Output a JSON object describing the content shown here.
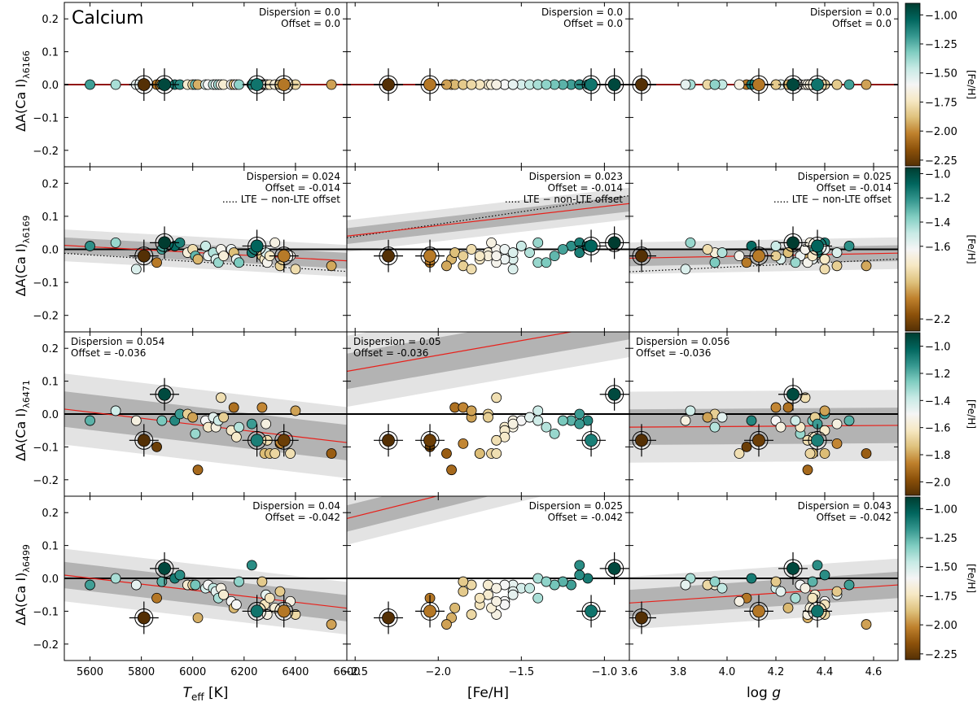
{
  "figure_title": "Calcium",
  "chart_data": {
    "type": "scatter",
    "element": "Calcium",
    "columns": [
      {
        "key": "teff",
        "xlabel_main": "T",
        "xlabel_sub": "eff",
        "xlabel_unit": " [K]",
        "xlim": [
          5500,
          6600
        ],
        "ticks": [
          5600,
          5800,
          6000,
          6200,
          6400,
          6600
        ],
        "tick_labels": [
          "5600",
          "5800",
          "6000",
          "6200",
          "6400",
          "6600"
        ]
      },
      {
        "key": "feh",
        "xlabel_main": "[Fe/H]",
        "xlim": [
          -2.55,
          -0.85
        ],
        "ticks": [
          -2.5,
          -2.0,
          -1.5,
          -1.0
        ],
        "tick_labels": [
          "−2.5",
          "−2.0",
          "−1.5",
          "−1.0"
        ]
      },
      {
        "key": "logg",
        "xlabel_main": "log ",
        "xlabel_italic": "g",
        "xlim": [
          3.6,
          4.7
        ],
        "ticks": [
          3.6,
          3.8,
          4.0,
          4.2,
          4.4,
          4.6
        ],
        "tick_labels": [
          "3.6",
          "3.8",
          "4.0",
          "4.2",
          "4.4",
          "4.6"
        ]
      }
    ],
    "ylim": [
      -0.25,
      0.25
    ],
    "yticks": [
      -0.2,
      -0.1,
      0.0,
      0.1,
      0.2
    ],
    "ytick_labels": [
      "−0.2",
      "−0.1",
      "0.0",
      "0.1",
      "0.2"
    ],
    "rows": [
      {
        "line": "6166",
        "ylabel_main": "ΔA(Ca I)",
        "ylabel_sub": "λ6166",
        "stats": [
          {
            "dispersion": "Dispersion = 0.0",
            "offset": "Offset = 0.0"
          },
          {
            "dispersion": "Dispersion = 0.0",
            "offset": "Offset = 0.0"
          },
          {
            "dispersion": "Dispersion = 0.0",
            "offset": "Offset = 0.0"
          }
        ],
        "stats_pos": "top-right",
        "lte_label": "",
        "fits": [
          {
            "a": 0.0,
            "b": 0.0
          },
          {
            "a": 0.0,
            "b": 0.0
          },
          {
            "a": 0.0,
            "b": 0.0
          }
        ],
        "bands": [
          0,
          0
        ],
        "lte": null
      },
      {
        "line": "6169",
        "ylabel_main": "ΔA(Ca I)",
        "ylabel_sub": "λ6169",
        "stats": [
          {
            "dispersion": "Dispersion = 0.024",
            "offset": "Offset = -0.014"
          },
          {
            "dispersion": "Dispersion = 0.023",
            "offset": "Offset = -0.014"
          },
          {
            "dispersion": "Dispersion = 0.025",
            "offset": "Offset = -0.014"
          }
        ],
        "stats_pos": "top-right",
        "lte_label": "..... LTE − non-LTE offset",
        "fits": [
          {
            "a": 0.012,
            "b": -4.25e-05
          },
          {
            "a": 0.04,
            "b": 0.058
          },
          {
            "a": -0.027,
            "b": 0.014
          }
        ],
        "bands": [
          0.024,
          0.048
        ],
        "lte": [
          {
            "a": -0.012,
            "b": -5e-05
          },
          {
            "a": 0.035,
            "b": 0.075
          },
          {
            "a": -0.068,
            "b": 0.035
          }
        ]
      },
      {
        "line": "6471",
        "ylabel_main": "ΔA(Ca I)",
        "ylabel_sub": "λ6471",
        "stats": [
          {
            "dispersion": "Dispersion = 0.054",
            "offset": "Offset = -0.036"
          },
          {
            "dispersion": "Dispersion = 0.05",
            "offset": "Offset = -0.036"
          },
          {
            "dispersion": "Dispersion = 0.056",
            "offset": "Offset = -0.036"
          }
        ],
        "stats_pos": "top-left",
        "lte_label": "",
        "fits": [
          {
            "a": 0.015,
            "b": -9.26e-05
          },
          {
            "a": 0.13,
            "b": 0.089
          },
          {
            "a": -0.04,
            "b": 0.005
          }
        ],
        "bands": [
          0.054,
          0.108
        ],
        "lte": null
      },
      {
        "line": "6499",
        "ylabel_main": "ΔA(Ca I)",
        "ylabel_sub": "λ6499",
        "stats": [
          {
            "dispersion": "Dispersion = 0.04",
            "offset": "Offset = -0.042"
          },
          {
            "dispersion": "Dispersion = 0.025",
            "offset": "Offset = -0.042"
          },
          {
            "dispersion": "Dispersion = 0.043",
            "offset": "Offset = -0.042"
          }
        ],
        "stats_pos": "top-right",
        "lte_label": "",
        "fits": [
          {
            "a": 0.01,
            "b": -9.17e-05
          },
          {
            "a": 0.182,
            "b": 0.126
          },
          {
            "a": -0.075,
            "b": 0.05
          }
        ],
        "bands": [
          0.04,
          0.08
        ],
        "lte": null
      }
    ],
    "stars": [
      {
        "teff": 5600,
        "feh": -1.2,
        "logg": 4.5,
        "dA": [
          0.0,
          0.01,
          -0.02,
          -0.02
        ]
      },
      {
        "teff": 5700,
        "feh": -1.4,
        "logg": 3.85,
        "dA": [
          0.0,
          0.02,
          0.01,
          0.0
        ]
      },
      {
        "teff": 5780,
        "feh": -1.55,
        "logg": 3.83,
        "dA": [
          0.0,
          -0.06,
          -0.02,
          -0.02
        ]
      },
      {
        "teff": 5860,
        "feh": -2.05,
        "logg": 4.08,
        "dA": [
          0.0,
          -0.04,
          -0.1,
          -0.06
        ]
      },
      {
        "teff": 5880,
        "feh": -1.25,
        "logg": 4.35,
        "dA": [
          0.0,
          0.0,
          -0.02,
          -0.01
        ]
      },
      {
        "teff": 5930,
        "feh": -1.1,
        "logg": 4.1,
        "dA": [
          0.0,
          0.01,
          -0.02,
          0.0
        ]
      },
      {
        "teff": 5950,
        "feh": -1.15,
        "logg": 4.4,
        "dA": [
          0.0,
          0.02,
          0.0,
          0.01
        ]
      },
      {
        "teff": 5980,
        "feh": -1.7,
        "logg": 3.95,
        "dA": [
          0.0,
          -0.01,
          0.0,
          -0.02
        ]
      },
      {
        "teff": 6000,
        "feh": -1.8,
        "logg": 3.92,
        "dA": [
          0.0,
          0.0,
          -0.01,
          -0.02
        ]
      },
      {
        "teff": 6010,
        "feh": -1.3,
        "logg": 4.3,
        "dA": [
          0.0,
          -0.02,
          -0.06,
          -0.02
        ]
      },
      {
        "teff": 6020,
        "feh": -1.92,
        "logg": 4.33,
        "dA": [
          0.0,
          -0.03,
          -0.17,
          -0.12
        ]
      },
      {
        "teff": 6050,
        "feh": -1.5,
        "logg": 4.2,
        "dA": [
          0.0,
          0.01,
          -0.02,
          -0.03
        ]
      },
      {
        "teff": 6060,
        "feh": -1.6,
        "logg": 4.3,
        "dA": [
          0.0,
          -0.02,
          -0.04,
          -0.02
        ]
      },
      {
        "teff": 6080,
        "feh": -1.45,
        "logg": 3.98,
        "dA": [
          0.0,
          -0.01,
          -0.01,
          -0.03
        ]
      },
      {
        "teff": 6090,
        "feh": -1.55,
        "logg": 4.22,
        "dA": [
          0.0,
          -0.03,
          -0.04,
          -0.04
        ]
      },
      {
        "teff": 6100,
        "feh": -1.4,
        "logg": 4.28,
        "dA": [
          0.0,
          -0.04,
          -0.02,
          -0.06
        ]
      },
      {
        "teff": 6110,
        "feh": -1.65,
        "logg": 4.32,
        "dA": [
          0.0,
          0.0,
          0.05,
          -0.03
        ]
      },
      {
        "teff": 6120,
        "feh": -1.7,
        "logg": 4.36,
        "dA": [
          0.0,
          -0.02,
          -0.01,
          -0.05
        ]
      },
      {
        "teff": 6150,
        "feh": -1.6,
        "logg": 4.4,
        "dA": [
          0.0,
          0.0,
          -0.05,
          -0.07
        ]
      },
      {
        "teff": 6160,
        "feh": -1.9,
        "logg": 4.25,
        "dA": [
          0.0,
          -0.01,
          0.02,
          -0.09
        ]
      },
      {
        "teff": 6170,
        "feh": -1.6,
        "logg": 4.35,
        "dA": [
          0.0,
          -0.03,
          -0.07,
          -0.08
        ]
      },
      {
        "teff": 6180,
        "feh": -1.35,
        "logg": 3.95,
        "dA": [
          0.0,
          -0.04,
          -0.04,
          -0.01
        ]
      },
      {
        "teff": 6230,
        "feh": -1.15,
        "logg": 4.37,
        "dA": [
          0.0,
          -0.01,
          -0.03,
          0.04
        ]
      },
      {
        "teff": 6270,
        "feh": -1.85,
        "logg": 4.2,
        "dA": [
          0.0,
          -0.02,
          0.02,
          -0.01
        ]
      },
      {
        "teff": 6280,
        "feh": -1.75,
        "logg": 4.4,
        "dA": [
          0.0,
          -0.03,
          -0.12,
          -0.08
        ]
      },
      {
        "teff": 6285,
        "feh": -1.55,
        "logg": 4.45,
        "dA": [
          0.0,
          -0.01,
          -0.03,
          -0.05
        ]
      },
      {
        "teff": 6290,
        "feh": -1.65,
        "logg": 4.33,
        "dA": [
          0.0,
          -0.04,
          -0.08,
          -0.11
        ]
      },
      {
        "teff": 6300,
        "feh": -1.75,
        "logg": 4.35,
        "dA": [
          0.0,
          -0.02,
          -0.12,
          -0.06
        ]
      },
      {
        "teff": 6320,
        "feh": -1.68,
        "logg": 4.34,
        "dA": [
          0.0,
          0.02,
          -0.12,
          -0.09
        ]
      },
      {
        "teff": 6340,
        "feh": -1.85,
        "logg": 4.45,
        "dA": [
          0.0,
          -0.05,
          -0.09,
          -0.04
        ]
      },
      {
        "teff": 6380,
        "feh": -1.65,
        "logg": 4.05,
        "dA": [
          0.0,
          -0.02,
          -0.12,
          -0.07
        ]
      },
      {
        "teff": 6400,
        "feh": -1.8,
        "logg": 4.4,
        "dA": [
          0.0,
          -0.06,
          0.01,
          -0.11
        ]
      },
      {
        "teff": 6540,
        "feh": -1.95,
        "logg": 4.57,
        "dA": [
          0.0,
          -0.05,
          -0.12,
          -0.14
        ]
      }
    ],
    "benchmarks": [
      {
        "teff": 5810,
        "feh": -2.3,
        "logg": 3.65,
        "dA": [
          0.0,
          -0.02,
          -0.08,
          -0.12
        ]
      },
      {
        "teff": 5890,
        "feh": -0.94,
        "logg": 4.27,
        "dA": [
          0.0,
          0.02,
          0.06,
          0.03
        ]
      },
      {
        "teff": 6250,
        "feh": -1.08,
        "logg": 4.37,
        "dA": [
          0.0,
          0.01,
          -0.08,
          -0.1
        ]
      },
      {
        "teff": 6355,
        "feh": -2.05,
        "logg": 4.13,
        "dA": [
          0.0,
          -0.02,
          -0.08,
          -0.1
        ]
      }
    ],
    "colorbar": {
      "label": "[Fe/H]",
      "ticks": [
        [
          -2.25,
          -2.0,
          -1.75,
          -1.5,
          -1.25,
          -1.0
        ],
        [
          -1.6,
          -1.4,
          -1.2,
          -1.0,
          -2.2
        ],
        [
          -2.0,
          -1.8,
          -1.6,
          -1.4,
          -1.2,
          -1.0
        ],
        [
          -2.25,
          -2.0,
          -1.75,
          -1.5,
          -1.25,
          -1.0
        ]
      ],
      "tick_labels": [
        [
          "−2.25",
          "−2.00",
          "−1.75",
          "−1.50",
          "−1.25",
          "−1.00"
        ],
        [
          "−1.6",
          "−1.4",
          "−1.2",
          "−1.0",
          "−2.2"
        ],
        [
          "−2.0",
          "−1.8",
          "−1.6",
          "−1.4",
          "−1.2",
          "−1.0"
        ],
        [
          "−2.25",
          "−2.00",
          "−1.75",
          "−1.50",
          "−1.25",
          "−1.00"
        ]
      ],
      "ranges": [
        [
          -2.3,
          -0.9
        ],
        [
          -2.3,
          -0.95
        ],
        [
          -2.1,
          -0.9
        ],
        [
          -2.3,
          -0.9
        ]
      ],
      "cmap": [
        "#543005",
        "#8c510a",
        "#bf812d",
        "#dfc27d",
        "#f6e8c3",
        "#f5f5f5",
        "#c7eae5",
        "#80cdc1",
        "#35978f",
        "#01665e",
        "#003c30"
      ]
    }
  }
}
